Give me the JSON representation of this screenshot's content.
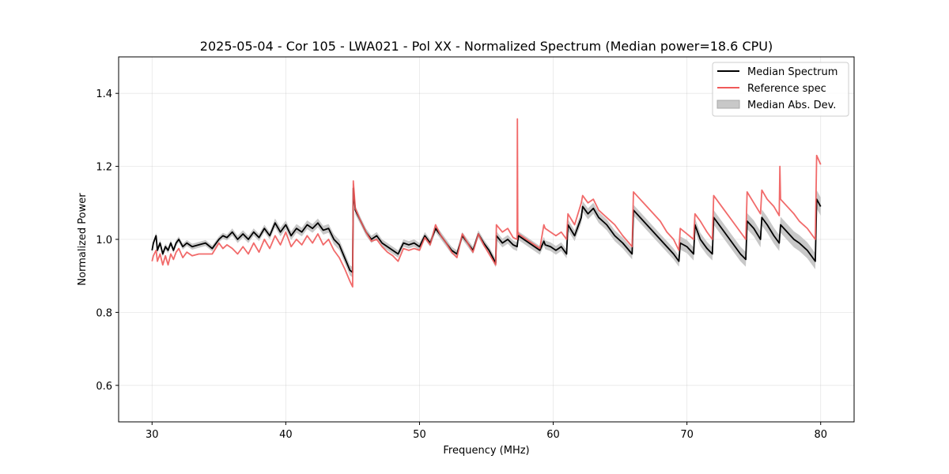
{
  "chart_data": {
    "type": "line",
    "title": "2025-05-04 - Cor 105 - LWA021 - Pol XX - Normalized Spectrum (Median power=18.6 CPU)",
    "xlabel": "Frequency (MHz)",
    "ylabel": "Normalized Power",
    "xlim": [
      27.5,
      82.5
    ],
    "ylim": [
      0.5,
      1.5
    ],
    "xticks": [
      30,
      40,
      50,
      60,
      70,
      80
    ],
    "yticks": [
      0.6,
      0.8,
      1.0,
      1.2,
      1.4
    ],
    "xtick_labels": [
      "30",
      "40",
      "50",
      "60",
      "70",
      "80"
    ],
    "ytick_labels": [
      "0.6",
      "0.8",
      "1.0",
      "1.2",
      "1.4"
    ],
    "grid": true,
    "legend_position": "top-right",
    "colors": {
      "median": "#000000",
      "reference": "#f05a5a",
      "mad_band": "#c8c8c8"
    },
    "series": [
      {
        "name": "Median Spectrum",
        "x": [
          30.0,
          30.1,
          30.3,
          30.4,
          30.6,
          30.8,
          31.0,
          31.2,
          31.4,
          31.6,
          31.8,
          32.0,
          32.3,
          32.6,
          33.0,
          33.5,
          34.0,
          34.5,
          35.0,
          35.3,
          35.6,
          36.0,
          36.4,
          36.8,
          37.2,
          37.6,
          38.0,
          38.4,
          38.8,
          39.2,
          39.6,
          40.0,
          40.4,
          40.8,
          41.2,
          41.6,
          42.0,
          42.4,
          42.8,
          43.2,
          43.6,
          44.0,
          44.4,
          44.8,
          45.0,
          45.05,
          45.2,
          45.6,
          46.0,
          46.4,
          46.8,
          47.2,
          47.6,
          48.0,
          48.4,
          48.8,
          49.2,
          49.6,
          50.0,
          50.4,
          50.8,
          51.2,
          51.6,
          52.0,
          52.4,
          52.8,
          53.2,
          53.6,
          54.0,
          54.4,
          54.8,
          55.2,
          55.7,
          55.75,
          56.2,
          56.6,
          57.0,
          57.3,
          57.4,
          57.8,
          58.2,
          58.6,
          59.0,
          59.3,
          59.4,
          59.8,
          60.2,
          60.6,
          61.0,
          61.1,
          61.6,
          62.1,
          62.2,
          62.6,
          63.0,
          63.4,
          64.0,
          64.6,
          65.2,
          65.9,
          66.0,
          66.5,
          67.0,
          67.5,
          68.0,
          68.5,
          69.0,
          69.4,
          69.5,
          70.0,
          70.5,
          70.6,
          71.0,
          71.5,
          71.9,
          72.0,
          72.4,
          72.8,
          73.2,
          73.6,
          74.0,
          74.4,
          74.5,
          75.0,
          75.5,
          75.6,
          76.0,
          76.5,
          76.9,
          77.0,
          77.5,
          78.0,
          78.4,
          79.0,
          79.6,
          79.7,
          80.0
        ],
        "values": [
          0.97,
          0.99,
          1.01,
          0.97,
          0.99,
          0.96,
          0.98,
          0.97,
          0.99,
          0.97,
          0.99,
          1.0,
          0.98,
          0.99,
          0.98,
          0.985,
          0.99,
          0.975,
          1.0,
          1.01,
          1.005,
          1.02,
          1.0,
          1.015,
          1.0,
          1.02,
          1.005,
          1.03,
          1.01,
          1.045,
          1.02,
          1.04,
          1.01,
          1.03,
          1.02,
          1.04,
          1.03,
          1.045,
          1.025,
          1.03,
          1.0,
          0.985,
          0.95,
          0.915,
          0.91,
          1.14,
          1.08,
          1.05,
          1.02,
          1.0,
          1.01,
          0.99,
          0.98,
          0.97,
          0.96,
          0.99,
          0.985,
          0.99,
          0.98,
          1.01,
          0.99,
          1.03,
          1.01,
          0.99,
          0.97,
          0.96,
          1.01,
          0.99,
          0.97,
          1.015,
          0.99,
          0.97,
          0.935,
          1.01,
          0.99,
          1.0,
          0.985,
          0.98,
          1.01,
          1.0,
          0.99,
          0.98,
          0.97,
          0.995,
          0.985,
          0.98,
          0.97,
          0.98,
          0.96,
          1.04,
          1.01,
          1.06,
          1.09,
          1.07,
          1.085,
          1.06,
          1.04,
          1.01,
          0.99,
          0.96,
          1.08,
          1.06,
          1.04,
          1.02,
          1.0,
          0.98,
          0.96,
          0.94,
          0.99,
          0.98,
          0.96,
          1.04,
          1.0,
          0.975,
          0.96,
          1.06,
          1.04,
          1.02,
          1.0,
          0.98,
          0.96,
          0.945,
          1.05,
          1.03,
          1.0,
          1.06,
          1.04,
          1.01,
          0.99,
          1.04,
          1.02,
          1.0,
          0.99,
          0.97,
          0.94,
          1.11,
          1.09
        ]
      },
      {
        "name": "Reference spec",
        "x": [
          30.0,
          30.1,
          30.3,
          30.4,
          30.6,
          30.8,
          31.0,
          31.2,
          31.4,
          31.6,
          31.8,
          32.0,
          32.3,
          32.6,
          33.0,
          33.5,
          34.0,
          34.5,
          35.0,
          35.3,
          35.6,
          36.0,
          36.4,
          36.8,
          37.2,
          37.6,
          38.0,
          38.4,
          38.8,
          39.2,
          39.6,
          40.0,
          40.4,
          40.8,
          41.2,
          41.6,
          42.0,
          42.4,
          42.8,
          43.2,
          43.6,
          44.0,
          44.4,
          44.8,
          45.0,
          45.05,
          45.2,
          45.6,
          46.0,
          46.4,
          46.8,
          47.2,
          47.6,
          48.0,
          48.4,
          48.8,
          49.2,
          49.6,
          50.0,
          50.4,
          50.8,
          51.2,
          51.6,
          52.0,
          52.4,
          52.8,
          53.2,
          53.6,
          54.0,
          54.4,
          54.8,
          55.2,
          55.7,
          55.75,
          56.2,
          56.6,
          57.0,
          57.3,
          57.32,
          57.35,
          57.4,
          57.8,
          58.2,
          58.6,
          59.0,
          59.3,
          59.4,
          59.8,
          60.2,
          60.6,
          61.0,
          61.1,
          61.6,
          62.1,
          62.2,
          62.6,
          63.0,
          63.4,
          64.0,
          64.6,
          65.2,
          65.9,
          66.0,
          66.5,
          67.0,
          67.5,
          68.0,
          68.5,
          69.0,
          69.4,
          69.5,
          70.0,
          70.5,
          70.6,
          71.0,
          71.5,
          71.9,
          72.0,
          72.4,
          72.8,
          73.2,
          73.6,
          74.0,
          74.4,
          74.5,
          75.0,
          75.5,
          75.6,
          76.0,
          76.5,
          76.9,
          76.95,
          77.0,
          77.5,
          78.0,
          78.4,
          79.0,
          79.6,
          79.7,
          80.0
        ],
        "values": [
          0.94,
          0.955,
          0.97,
          0.94,
          0.96,
          0.93,
          0.955,
          0.93,
          0.96,
          0.945,
          0.965,
          0.975,
          0.95,
          0.965,
          0.955,
          0.96,
          0.96,
          0.96,
          0.99,
          0.975,
          0.985,
          0.975,
          0.96,
          0.98,
          0.96,
          0.99,
          0.965,
          1.0,
          0.975,
          1.01,
          0.985,
          1.02,
          0.98,
          1.0,
          0.985,
          1.01,
          0.99,
          1.015,
          0.985,
          1.0,
          0.97,
          0.95,
          0.92,
          0.885,
          0.87,
          1.16,
          1.085,
          1.05,
          1.02,
          0.995,
          1.0,
          0.98,
          0.965,
          0.955,
          0.94,
          0.975,
          0.97,
          0.975,
          0.97,
          1.005,
          0.985,
          1.04,
          1.01,
          0.99,
          0.965,
          0.95,
          1.015,
          0.99,
          0.965,
          1.015,
          0.985,
          0.96,
          0.93,
          1.04,
          1.02,
          1.03,
          1.005,
          1.0,
          1.33,
          1.02,
          1.015,
          1.005,
          0.995,
          0.985,
          0.975,
          1.04,
          1.03,
          1.02,
          1.01,
          1.02,
          1.0,
          1.07,
          1.04,
          1.1,
          1.12,
          1.1,
          1.11,
          1.08,
          1.06,
          1.04,
          1.01,
          0.98,
          1.13,
          1.11,
          1.09,
          1.07,
          1.05,
          1.02,
          1.0,
          0.97,
          1.03,
          1.015,
          1.0,
          1.07,
          1.05,
          1.02,
          1.0,
          1.12,
          1.1,
          1.08,
          1.06,
          1.04,
          1.02,
          1.0,
          1.13,
          1.1,
          1.07,
          1.135,
          1.11,
          1.09,
          1.065,
          1.2,
          1.11,
          1.09,
          1.07,
          1.05,
          1.03,
          1.0,
          1.23,
          1.205
        ]
      }
    ],
    "mad_band": {
      "name": "Median Abs. Dev.",
      "half_width": [
        0.008,
        0.008,
        0.008,
        0.008,
        0.008,
        0.008,
        0.008,
        0.008,
        0.008,
        0.008,
        0.008,
        0.008,
        0.008,
        0.008,
        0.008,
        0.008,
        0.008,
        0.008,
        0.008,
        0.008,
        0.008,
        0.01,
        0.01,
        0.01,
        0.01,
        0.01,
        0.01,
        0.01,
        0.01,
        0.012,
        0.012,
        0.012,
        0.012,
        0.012,
        0.012,
        0.012,
        0.012,
        0.012,
        0.012,
        0.012,
        0.014,
        0.014,
        0.014,
        0.014,
        0.014,
        0.014,
        0.012,
        0.01,
        0.01,
        0.01,
        0.01,
        0.01,
        0.01,
        0.01,
        0.01,
        0.01,
        0.01,
        0.01,
        0.01,
        0.01,
        0.01,
        0.01,
        0.01,
        0.01,
        0.01,
        0.01,
        0.01,
        0.01,
        0.01,
        0.01,
        0.01,
        0.01,
        0.012,
        0.012,
        0.012,
        0.012,
        0.012,
        0.012,
        0.012,
        0.012,
        0.012,
        0.012,
        0.012,
        0.012,
        0.012,
        0.012,
        0.012,
        0.012,
        0.012,
        0.015,
        0.015,
        0.015,
        0.015,
        0.015,
        0.015,
        0.015,
        0.015,
        0.015,
        0.015,
        0.015,
        0.015,
        0.015,
        0.015,
        0.015,
        0.015,
        0.015,
        0.015,
        0.015,
        0.018,
        0.018,
        0.018,
        0.018,
        0.018,
        0.018,
        0.018,
        0.02,
        0.02,
        0.02,
        0.02,
        0.02,
        0.02,
        0.02,
        0.022,
        0.022,
        0.022,
        0.022,
        0.022,
        0.022,
        0.022,
        0.022,
        0.022,
        0.022,
        0.022,
        0.022,
        0.022,
        0.025,
        0.025
      ]
    }
  }
}
